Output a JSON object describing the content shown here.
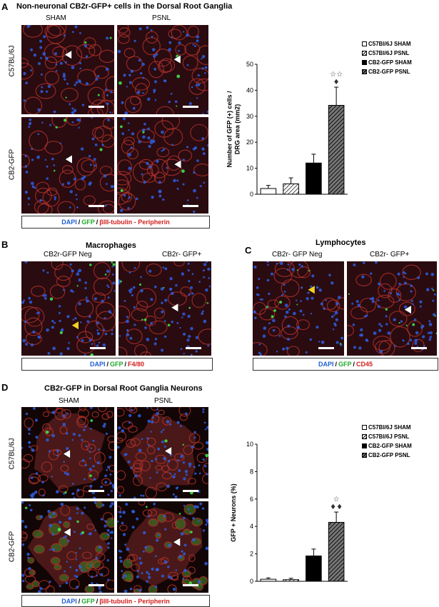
{
  "panels": {
    "A": {
      "letter": "A",
      "title": "Non-neuronal CB2r-GFP+ cells in the Dorsal Root Ganglia",
      "col_labels": [
        "SHAM",
        "PSNL"
      ],
      "row_labels": [
        "C57BL/6J",
        "CB2-GFP"
      ],
      "stain_legend": {
        "dapi": "DAPI",
        "sep": " / ",
        "gfp": "GFP",
        "marker": "βIII-tubulin - Peripherin"
      }
    },
    "B": {
      "letter": "B",
      "title": "Macrophages",
      "col_labels": [
        "CB2r-GFP Neg",
        "CB2r- GFP+"
      ],
      "stain_legend": {
        "dapi": "DAPI",
        "sep": " / ",
        "gfp": "GFP",
        "marker": "F4/80"
      }
    },
    "C": {
      "letter": "C",
      "title": "Lymphocytes",
      "col_labels": [
        "CB2r- GFP Neg",
        "CB2r- GFP+"
      ],
      "stain_legend": {
        "dapi": "DAPI",
        "sep": " / ",
        "gfp": "GFP",
        "marker": "CD45"
      }
    },
    "D": {
      "letter": "D",
      "title": "CB2r-GFP  in Dorsal Root Ganglia Neurons",
      "col_labels": [
        "SHAM",
        "PSNL"
      ],
      "row_labels": [
        "C57BL/6J",
        "CB2-GFP"
      ],
      "stain_legend": {
        "dapi": "DAPI",
        "sep": " / ",
        "gfp": "GFP",
        "marker": "βIII-tubulin - Peripherin"
      }
    }
  },
  "colors": {
    "dapi": "#1f5fd6",
    "gfp": "#1faa2a",
    "marker": "#d32020"
  },
  "chart_data": [
    {
      "type": "bar",
      "panel": "A",
      "categories": [
        "C57Bl/6J SHAM",
        "C57Bl/6J PSNL",
        "CB2-GFP SHAM",
        "CB2-GFP PSNL"
      ],
      "values": [
        2.2,
        4.0,
        12.0,
        34.2
      ],
      "errors": [
        1.2,
        2.3,
        3.4,
        7.0
      ],
      "fills": [
        "white",
        "hatch",
        "black",
        "dhatch"
      ],
      "ylabel": "Number of GFP (+) cells / DRG area (mm2)",
      "ylim": [
        0,
        50
      ],
      "yticks": [
        0,
        10,
        20,
        30,
        40,
        50
      ],
      "annotations": [
        {
          "index": 3,
          "text": "☆☆"
        },
        {
          "index": 3,
          "text": "♦"
        }
      ],
      "legend": [
        "C57Bl/6J SHAM",
        "C57Bl/6J PSNL",
        "CB2-GFP SHAM",
        "CB2-GFP PSNL"
      ],
      "legend_position": "top-right"
    },
    {
      "type": "bar",
      "panel": "D",
      "categories": [
        "C57Bl/6J SHAM",
        "C57Bl/6J PSNL",
        "CB2-GFP SHAM",
        "CB2-GFP PSNL"
      ],
      "values": [
        0.15,
        0.12,
        1.85,
        4.3
      ],
      "errors": [
        0.1,
        0.1,
        0.5,
        0.75
      ],
      "fills": [
        "white",
        "hatch",
        "black",
        "dhatch"
      ],
      "ylabel": "GFP + Neurons (%)",
      "ylim": [
        0,
        10
      ],
      "yticks": [
        0,
        2,
        4,
        6,
        8,
        10
      ],
      "annotations": [
        {
          "index": 3,
          "text": "☆"
        },
        {
          "index": 3,
          "text": "♦♦"
        }
      ],
      "legend": [
        "C57Bl/6J SHAM",
        "C57Bl/6J PSNL",
        "CB2-GFP SHAM",
        "CB2-GFP PSNL"
      ],
      "legend_position": "top-right"
    }
  ]
}
